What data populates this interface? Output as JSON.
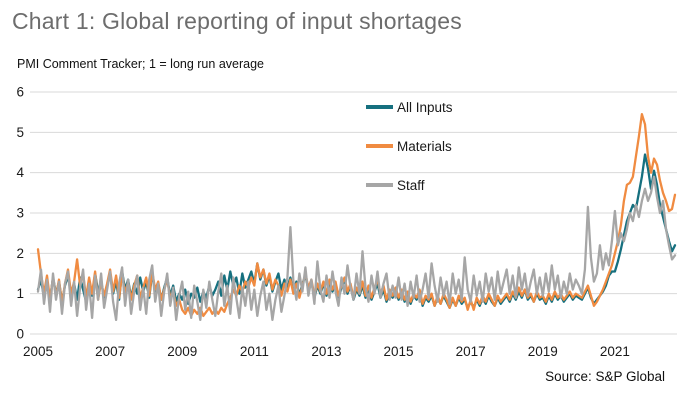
{
  "header": {
    "title": "Chart 1: Global reporting of input shortages",
    "subtitle": "PMI Comment Tracker; 1 = long run average"
  },
  "source_note": "Source: S&P Global",
  "colors": {
    "title_gray": "#6d6d6d",
    "gridline": "#d9d9d9",
    "axis_text": "#1a1a1a",
    "all_inputs": "#16707f",
    "materials": "#f08b41",
    "staff": "#a6a6a6"
  },
  "chart_data": {
    "type": "line",
    "title": "Chart 1: Global reporting of input shortages",
    "subtitle": "PMI Comment Tracker; 1 = long run average",
    "xlabel": "",
    "ylabel": "",
    "ylim": [
      0,
      6
    ],
    "y_ticks": [
      0,
      1,
      2,
      3,
      4,
      5,
      6
    ],
    "grid": "horizontal",
    "legend_position": "top-center-inside",
    "x_unit": "month",
    "x_start": "2005-01",
    "x_end": "2022-09",
    "x_tick_labels": [
      "2005",
      "2007",
      "2009",
      "2011",
      "2013",
      "2015",
      "2017",
      "2019",
      "2021"
    ],
    "series": [
      {
        "name": "All Inputs",
        "color": "#16707f",
        "values": [
          1.1,
          1.35,
          0.9,
          1.25,
          0.85,
          1.4,
          1.0,
          1.3,
          0.8,
          1.2,
          1.45,
          0.95,
          1.25,
          0.85,
          1.4,
          1.1,
          0.8,
          1.35,
          0.95,
          1.5,
          1.05,
          1.3,
          0.9,
          1.2,
          1.45,
          1.0,
          1.3,
          0.85,
          1.55,
          1.1,
          1.35,
          0.9,
          1.25,
          1.0,
          1.4,
          1.05,
          1.3,
          0.9,
          1.5,
          1.05,
          1.25,
          0.85,
          1.15,
          1.4,
          0.95,
          1.2,
          0.8,
          1.0,
          0.85,
          1.1,
          0.75,
          1.0,
          0.9,
          1.15,
          0.8,
          1.05,
          0.9,
          1.2,
          0.95,
          1.1,
          1.3,
          0.95,
          1.45,
          1.1,
          1.55,
          1.2,
          1.4,
          1.0,
          1.5,
          1.15,
          1.35,
          1.55,
          1.25,
          1.75,
          1.35,
          1.6,
          1.2,
          1.45,
          1.05,
          1.3,
          1.5,
          1.1,
          1.35,
          1.15,
          1.4,
          1.05,
          1.3,
          0.95,
          1.25,
          1.45,
          1.1,
          1.3,
          0.9,
          1.2,
          1.0,
          1.25,
          0.95,
          1.3,
          1.05,
          1.25,
          0.9,
          1.15,
          1.35,
          1.0,
          1.2,
          0.85,
          1.1,
          0.95,
          1.2,
          0.9,
          1.1,
          0.85,
          1.05,
          1.25,
          0.9,
          1.1,
          0.8,
          1.0,
          0.9,
          1.05,
          0.85,
          1.05,
          0.8,
          1.0,
          0.75,
          0.95,
          0.85,
          1.05,
          0.7,
          0.9,
          0.8,
          0.95,
          0.7,
          0.9,
          0.75,
          0.95,
          0.8,
          0.65,
          0.85,
          0.7,
          0.9,
          0.75,
          0.85,
          0.65,
          0.8,
          0.65,
          0.85,
          0.7,
          0.9,
          0.75,
          0.95,
          0.8,
          0.7,
          0.9,
          0.75,
          0.85,
          0.95,
          0.8,
          1.0,
          0.85,
          1.05,
          0.9,
          1.1,
          0.85,
          0.95,
          0.8,
          1.0,
          0.85,
          0.9,
          0.75,
          0.95,
          0.8,
          1.0,
          0.85,
          0.95,
          0.8,
          0.9,
          1.0,
          0.85,
          0.95,
          0.9,
          0.85,
          1.0,
          1.15,
          0.9,
          0.75,
          0.85,
          0.95,
          1.05,
          1.2,
          1.45,
          1.55,
          1.55,
          1.8,
          2.1,
          2.45,
          2.8,
          3.0,
          3.2,
          3.1,
          3.5,
          3.9,
          4.45,
          4.1,
          3.6,
          4.05,
          3.7,
          3.2,
          2.9,
          2.6,
          2.3,
          2.05,
          2.2
        ]
      },
      {
        "name": "Materials",
        "color": "#f08b41",
        "values": [
          2.1,
          1.5,
          1.0,
          1.45,
          0.85,
          1.4,
          0.95,
          1.35,
          0.75,
          1.25,
          1.6,
          1.0,
          1.3,
          1.85,
          1.2,
          1.5,
          0.9,
          1.4,
          1.0,
          1.55,
          0.85,
          1.3,
          0.95,
          1.25,
          1.6,
          1.05,
          1.45,
          0.9,
          1.5,
          1.0,
          1.3,
          0.85,
          1.2,
          1.45,
          0.9,
          1.15,
          1.4,
          0.95,
          1.55,
          1.1,
          1.3,
          0.85,
          1.1,
          1.35,
          0.9,
          1.05,
          0.7,
          0.85,
          0.6,
          0.5,
          0.65,
          0.45,
          0.6,
          0.5,
          0.65,
          0.45,
          0.55,
          0.65,
          0.5,
          0.6,
          0.5,
          0.65,
          0.55,
          0.75,
          0.9,
          1.1,
          0.95,
          1.2,
          1.05,
          1.3,
          1.15,
          1.4,
          1.2,
          1.75,
          1.4,
          1.6,
          1.25,
          1.5,
          1.1,
          1.35,
          1.2,
          0.95,
          1.25,
          1.05,
          1.35,
          1.0,
          1.25,
          0.9,
          1.2,
          1.5,
          1.15,
          1.35,
          0.95,
          1.25,
          1.05,
          1.3,
          1.0,
          1.35,
          1.1,
          1.3,
          0.95,
          1.2,
          1.4,
          1.05,
          1.25,
          0.9,
          1.15,
          1.0,
          1.3,
          0.95,
          1.2,
          0.9,
          1.15,
          1.35,
          1.0,
          1.2,
          0.85,
          1.1,
          0.95,
          1.15,
          0.9,
          1.1,
          0.85,
          1.05,
          0.8,
          1.0,
          0.9,
          1.1,
          0.75,
          0.95,
          0.85,
          1.0,
          0.7,
          0.95,
          0.75,
          1.0,
          0.85,
          0.65,
          0.9,
          0.7,
          0.95,
          0.8,
          0.9,
          0.6,
          0.85,
          0.6,
          0.9,
          0.75,
          0.95,
          0.8,
          1.0,
          0.85,
          0.7,
          0.95,
          0.8,
          0.9,
          1.0,
          0.85,
          1.05,
          0.9,
          1.15,
          0.95,
          1.1,
          0.9,
          1.0,
          0.8,
          1.05,
          0.9,
          0.95,
          0.8,
          1.0,
          0.85,
          1.05,
          0.9,
          1.0,
          0.85,
          0.95,
          1.05,
          0.9,
          1.0,
          0.95,
          0.9,
          1.05,
          1.2,
          0.95,
          0.7,
          0.8,
          0.95,
          1.1,
          1.3,
          1.5,
          1.7,
          2.0,
          2.3,
          2.7,
          3.3,
          3.7,
          3.75,
          3.9,
          4.4,
          4.9,
          5.45,
          5.2,
          4.4,
          4.0,
          4.35,
          4.2,
          3.8,
          3.5,
          3.3,
          3.05,
          3.1,
          3.45
        ]
      },
      {
        "name": "Staff",
        "color": "#a6a6a6",
        "values": [
          1.05,
          1.6,
          0.75,
          1.35,
          0.55,
          1.5,
          0.85,
          1.3,
          0.5,
          1.25,
          1.55,
          0.7,
          1.3,
          0.45,
          1.15,
          1.6,
          0.6,
          1.25,
          0.4,
          1.45,
          0.85,
          1.5,
          0.65,
          1.1,
          1.55,
          0.8,
          0.35,
          1.25,
          1.65,
          0.7,
          1.35,
          0.5,
          1.05,
          1.45,
          0.6,
          1.15,
          0.5,
          1.35,
          1.7,
          0.8,
          1.25,
          0.45,
          1.05,
          1.5,
          0.7,
          1.15,
          0.35,
          0.95,
          1.3,
          0.6,
          1.05,
          0.4,
          1.2,
          0.8,
          0.35,
          1.1,
          0.65,
          1.3,
          0.85,
          0.45,
          1.05,
          1.5,
          0.7,
          1.2,
          0.5,
          1.4,
          0.9,
          0.4,
          1.15,
          0.7,
          1.3,
          0.6,
          1.1,
          0.45,
          0.95,
          1.3,
          0.6,
          1.0,
          0.35,
          0.85,
          1.2,
          0.55,
          0.95,
          1.4,
          2.65,
          1.3,
          0.85,
          1.5,
          1.05,
          1.65,
          0.95,
          1.35,
          0.75,
          1.8,
          1.1,
          0.8,
          1.45,
          0.9,
          1.55,
          1.05,
          0.7,
          1.4,
          1.0,
          1.7,
          1.15,
          0.85,
          1.5,
          1.0,
          2.05,
          1.15,
          0.8,
          1.45,
          1.0,
          1.55,
          0.9,
          1.25,
          1.5,
          0.85,
          1.2,
          0.9,
          1.4,
          0.85,
          1.25,
          0.7,
          1.3,
          0.9,
          1.45,
          0.8,
          1.1,
          1.5,
          0.9,
          1.75,
          1.2,
          0.8,
          1.4,
          0.95,
          1.3,
          0.75,
          1.5,
          1.0,
          1.35,
          0.85,
          1.9,
          1.1,
          0.8,
          1.45,
          0.95,
          1.3,
          0.8,
          1.5,
          1.05,
          1.4,
          0.85,
          1.55,
          1.0,
          1.3,
          1.6,
          1.0,
          1.45,
          0.9,
          1.65,
          1.1,
          1.5,
          0.95,
          1.3,
          1.6,
          1.0,
          1.4,
          0.95,
          1.5,
          1.05,
          1.7,
          1.1,
          1.45,
          0.9,
          1.3,
          1.0,
          1.5,
          1.1,
          1.35,
          1.2,
          1.0,
          1.6,
          3.15,
          1.9,
          1.3,
          1.5,
          2.2,
          1.6,
          2.0,
          1.7,
          2.3,
          3.05,
          2.2,
          2.5,
          2.3,
          2.6,
          3.0,
          2.8,
          3.2,
          2.9,
          3.3,
          3.6,
          3.3,
          3.5,
          3.9,
          3.4,
          3.0,
          3.3,
          2.6,
          2.2,
          1.85,
          1.95
        ]
      }
    ]
  }
}
